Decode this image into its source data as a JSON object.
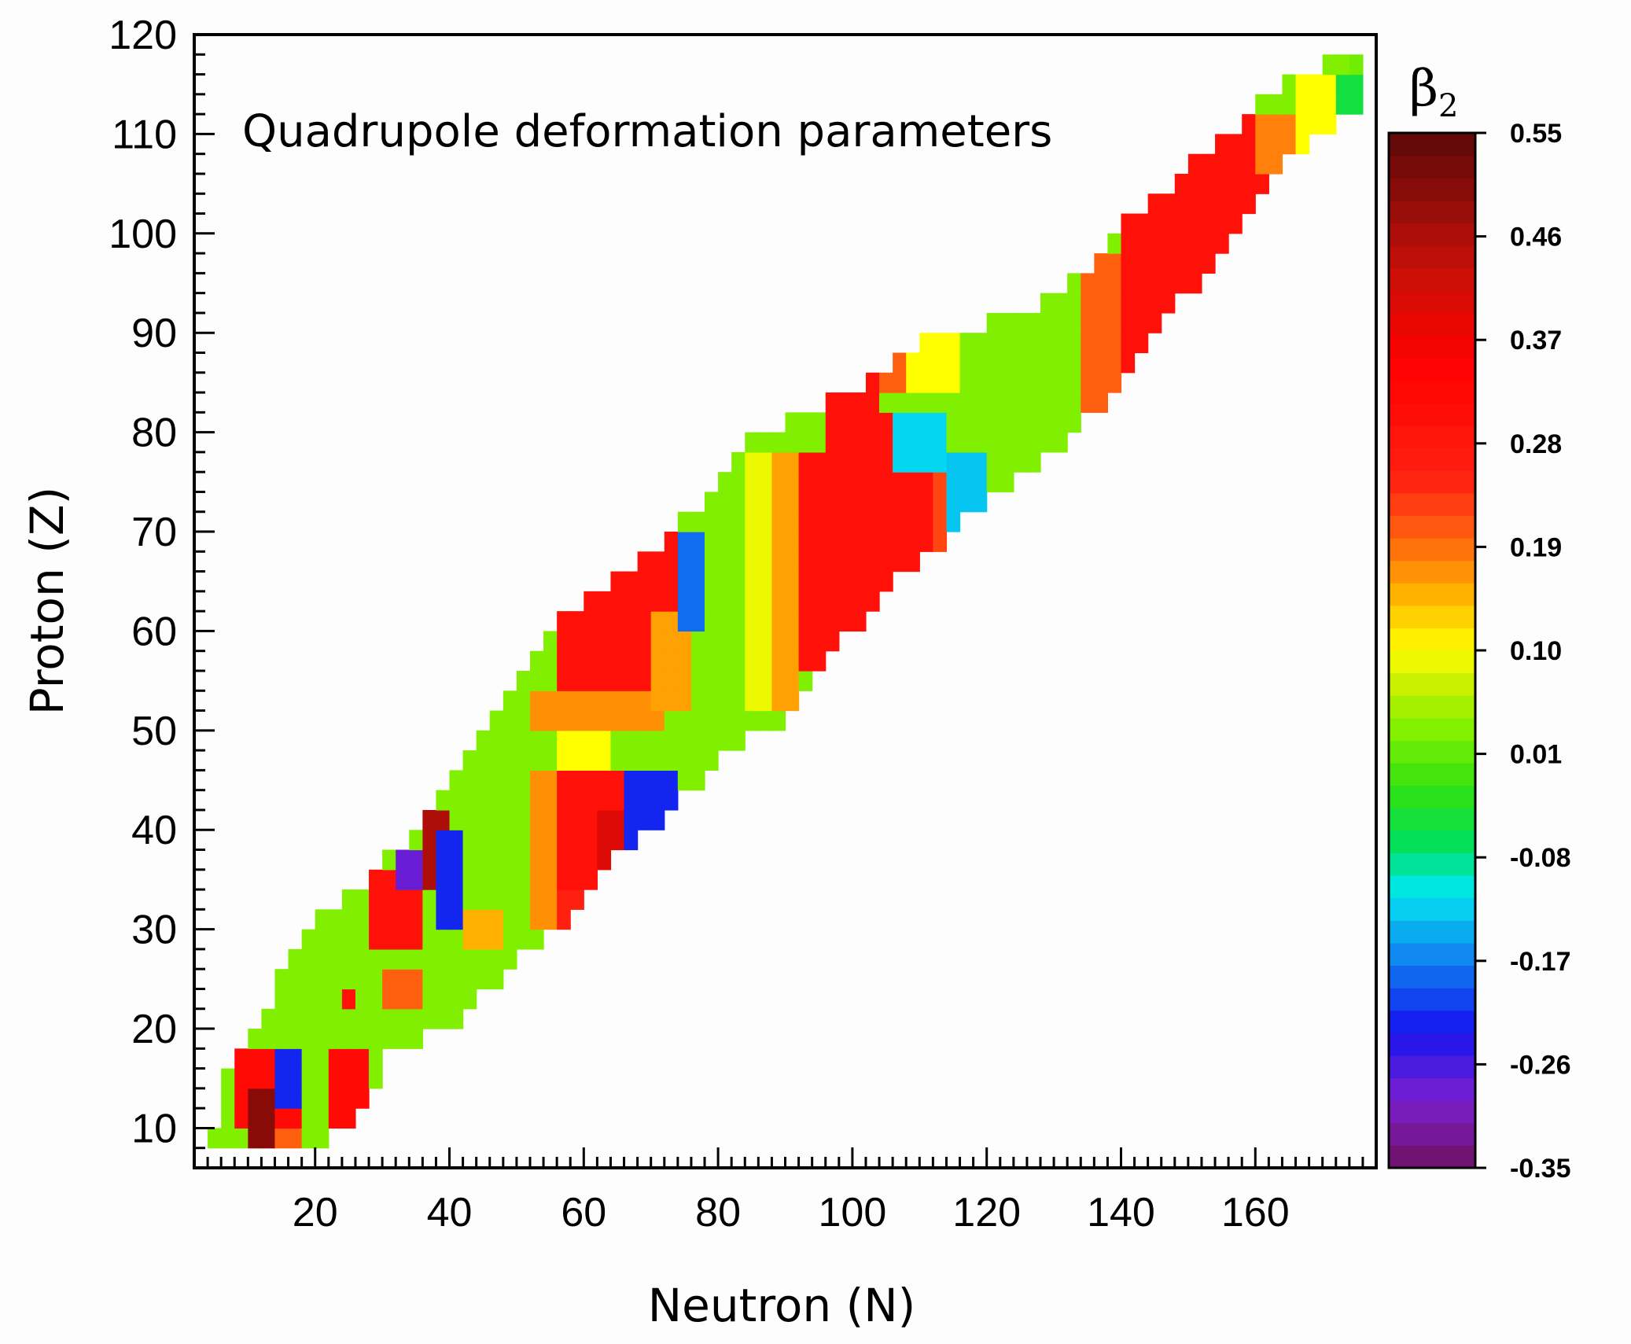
{
  "chart_data": {
    "type": "heatmap",
    "title": "Quadrupole deformation parameters",
    "xlabel": "Neutron (N)",
    "ylabel": "Proton (Z)",
    "xlim": [
      2,
      178
    ],
    "ylim": [
      6,
      120
    ],
    "xticks": [
      20,
      40,
      60,
      80,
      100,
      120,
      140,
      160
    ],
    "yticks": [
      10,
      20,
      30,
      40,
      50,
      60,
      70,
      80,
      90,
      100,
      110,
      120
    ],
    "colorbar": {
      "label": "β",
      "label_sub": "2",
      "range": [
        -0.35,
        0.55
      ],
      "ticks": [
        "0.55",
        "0.46",
        "0.37",
        "0.28",
        "0.19",
        "0.10",
        "0.01",
        "-0.08",
        "-0.17",
        "-0.26",
        "-0.35"
      ],
      "stops": [
        [
          -0.35,
          "#6e1060"
        ],
        [
          -0.29,
          "#7a20d0"
        ],
        [
          -0.23,
          "#1414f0"
        ],
        [
          -0.16,
          "#1090f0"
        ],
        [
          -0.11,
          "#00e8f0"
        ],
        [
          -0.07,
          "#00e060"
        ],
        [
          -0.02,
          "#30e010"
        ],
        [
          0.03,
          "#80f000"
        ],
        [
          0.08,
          "#d8f000"
        ],
        [
          0.1,
          "#ffff00"
        ],
        [
          0.15,
          "#ffb000"
        ],
        [
          0.2,
          "#ff6010"
        ],
        [
          0.25,
          "#ff2010"
        ],
        [
          0.35,
          "#ff0000"
        ],
        [
          0.43,
          "#c81008"
        ],
        [
          0.55,
          "#5a0808"
        ]
      ]
    },
    "cell_size": 2,
    "background_beta": 0.03,
    "nuclide_boundary": {
      "z": [
        8,
        10,
        14,
        16,
        18,
        20,
        28,
        30,
        36,
        40,
        44,
        48,
        50,
        56,
        62,
        64,
        70,
        74,
        78,
        80,
        82,
        84,
        86,
        90,
        92,
        96,
        100,
        106,
        110,
        114,
        118
      ],
      "n_min": [
        4,
        6,
        7,
        8,
        10,
        12,
        18,
        20,
        30,
        36,
        40,
        44,
        46,
        52,
        58,
        62,
        74,
        80,
        84,
        86,
        94,
        100,
        104,
        114,
        126,
        136,
        140,
        150,
        157,
        163,
        174
      ],
      "n_max": [
        18,
        24,
        28,
        29,
        30,
        40,
        50,
        56,
        62,
        70,
        75,
        80,
        88,
        94,
        102,
        104,
        114,
        122,
        130,
        132,
        136,
        138,
        140,
        144,
        146,
        152,
        156,
        162,
        170,
        176,
        176
      ]
    },
    "regions": [
      {
        "n": [
          84,
          88
        ],
        "z": [
          52,
          78
        ],
        "beta": 0.09
      },
      {
        "n": [
          88,
          92
        ],
        "z": [
          52,
          78
        ],
        "beta": 0.16
      },
      {
        "n": [
          92,
          114
        ],
        "z": [
          56,
          78
        ],
        "beta": 0.3
      },
      {
        "n": [
          96,
          106
        ],
        "z": [
          78,
          82
        ],
        "beta": 0.3
      },
      {
        "n": [
          112,
          116
        ],
        "z": [
          66,
          76
        ],
        "beta": 0.22
      },
      {
        "n": [
          106,
          114
        ],
        "z": [
          76,
          82
        ],
        "beta": -0.12
      },
      {
        "n": [
          114,
          120
        ],
        "z": [
          70,
          78
        ],
        "beta": -0.13
      },
      {
        "n": [
          96,
          104
        ],
        "z": [
          82,
          86
        ],
        "beta": 0.3
      },
      {
        "n": [
          104,
          110
        ],
        "z": [
          84,
          88
        ],
        "beta": 0.2
      },
      {
        "n": [
          108,
          116
        ],
        "z": [
          84,
          90
        ],
        "beta": 0.1
      },
      {
        "n": [
          52,
          72
        ],
        "z": [
          50,
          54
        ],
        "beta": 0.17
      },
      {
        "n": [
          56,
          74
        ],
        "z": [
          54,
          70
        ],
        "beta": 0.3
      },
      {
        "n": [
          70,
          76
        ],
        "z": [
          52,
          62
        ],
        "beta": 0.16
      },
      {
        "n": [
          74,
          78
        ],
        "z": [
          60,
          70
        ],
        "beta": -0.18
      },
      {
        "n": [
          56,
          64
        ],
        "z": [
          46,
          50
        ],
        "beta": 0.1
      },
      {
        "n": [
          52,
          56
        ],
        "z": [
          30,
          46
        ],
        "beta": 0.17
      },
      {
        "n": [
          56,
          66
        ],
        "z": [
          34,
          46
        ],
        "beta": 0.3
      },
      {
        "n": [
          62,
          68
        ],
        "z": [
          36,
          42
        ],
        "beta": 0.4
      },
      {
        "n": [
          66,
          74
        ],
        "z": [
          38,
          46
        ],
        "beta": -0.22
      },
      {
        "n": [
          56,
          60
        ],
        "z": [
          30,
          34
        ],
        "beta": 0.25
      },
      {
        "n": [
          28,
          36
        ],
        "z": [
          28,
          36
        ],
        "beta": 0.3
      },
      {
        "n": [
          36,
          40
        ],
        "z": [
          34,
          42
        ],
        "beta": 0.46
      },
      {
        "n": [
          38,
          42
        ],
        "z": [
          30,
          40
        ],
        "beta": -0.22
      },
      {
        "n": [
          32,
          36
        ],
        "z": [
          34,
          38
        ],
        "beta": -0.28
      },
      {
        "n": [
          42,
          48
        ],
        "z": [
          28,
          32
        ],
        "beta": 0.15
      },
      {
        "n": [
          30,
          36
        ],
        "z": [
          22,
          26
        ],
        "beta": 0.2
      },
      {
        "n": [
          24,
          26
        ],
        "z": [
          22,
          24
        ],
        "beta": 0.3
      },
      {
        "n": [
          8,
          18
        ],
        "z": [
          10,
          18
        ],
        "beta": 0.32
      },
      {
        "n": [
          10,
          14
        ],
        "z": [
          8,
          14
        ],
        "beta": 0.5
      },
      {
        "n": [
          14,
          18
        ],
        "z": [
          12,
          18
        ],
        "beta": -0.22
      },
      {
        "n": [
          14,
          18
        ],
        "z": [
          8,
          10
        ],
        "beta": 0.2
      },
      {
        "n": [
          22,
          28
        ],
        "z": [
          8,
          18
        ],
        "beta": 0.32
      },
      {
        "n": [
          28,
          30
        ],
        "z": [
          12,
          14
        ],
        "beta": -0.3
      },
      {
        "n": [
          30,
          32
        ],
        "z": [
          14,
          16
        ],
        "beta": -0.22
      },
      {
        "n": [
          134,
          140
        ],
        "z": [
          80,
          98
        ],
        "beta": 0.2
      },
      {
        "n": [
          140,
          170
        ],
        "z": [
          86,
          112
        ],
        "beta": 0.3
      },
      {
        "n": [
          160,
          166
        ],
        "z": [
          106,
          112
        ],
        "beta": 0.18
      },
      {
        "n": [
          166,
          172
        ],
        "z": [
          108,
          116
        ],
        "beta": 0.1
      },
      {
        "n": [
          172,
          178
        ],
        "z": [
          110,
          116
        ],
        "beta": -0.05
      },
      {
        "n": [
          174,
          178
        ],
        "z": [
          116,
          120
        ],
        "beta": 0.02
      }
    ]
  }
}
